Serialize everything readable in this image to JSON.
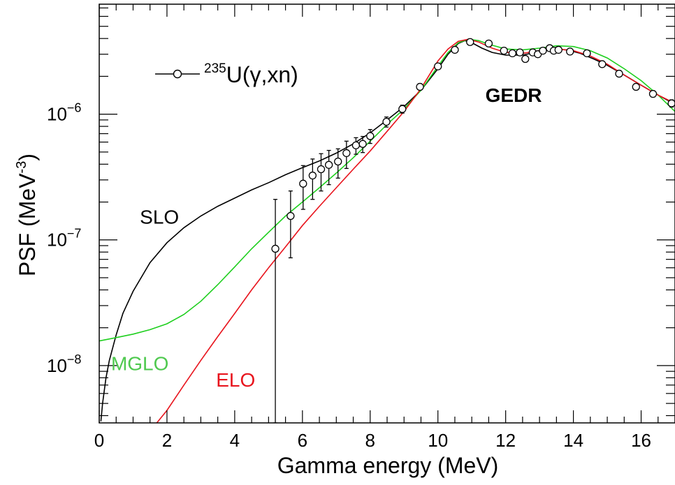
{
  "chart_data": {
    "type": "line",
    "title": "",
    "xlabel": "Gamma energy (MeV)",
    "ylabel_main": "PSF (MeV",
    "ylabel_exp": "-3",
    "ylabel_close": ")",
    "xlim": [
      0,
      17
    ],
    "ylim": [
      3.5e-09,
      7.5e-06
    ],
    "yscale": "log",
    "grid": false,
    "x_ticks": [
      0,
      2,
      4,
      6,
      8,
      10,
      12,
      14,
      16
    ],
    "x_tick_labels": [
      "0",
      "2",
      "4",
      "6",
      "8",
      "10",
      "12",
      "14",
      "16"
    ],
    "y_ticks": [
      1e-08,
      1e-07,
      1e-06
    ],
    "y_tick_labels": [
      {
        "base": "10",
        "exp": "−8"
      },
      {
        "base": "10",
        "exp": "−7"
      },
      {
        "base": "10",
        "exp": "−6"
      }
    ],
    "legend": {
      "placement": "top-left",
      "sup": "235",
      "label": "U(γ,xn)"
    },
    "annotations": [
      {
        "text": "GEDR",
        "x": 11.4,
        "y": 1.25e-06,
        "color": "#000000",
        "bold": true
      },
      {
        "text": "SLO",
        "x": 1.2,
        "y": 1.35e-07,
        "color": "#000000",
        "bold": false
      },
      {
        "text": "MGLO",
        "x": 0.35,
        "y": 9.2e-09,
        "color": "#4fc94f",
        "bold": false
      },
      {
        "text": "ELO",
        "x": 3.45,
        "y": 6.8e-09,
        "color": "#e8141d",
        "bold": false
      }
    ],
    "series": [
      {
        "name": "SLO",
        "color": "#000000",
        "x": [
          0.05,
          0.1,
          0.2,
          0.3,
          0.5,
          0.7,
          1.0,
          1.5,
          2.0,
          2.5,
          3.0,
          3.5,
          4.0,
          4.5,
          5.0,
          5.5,
          6.0,
          6.5,
          7.0,
          7.5,
          8.0,
          8.5,
          9.0,
          9.5,
          10.0,
          10.3,
          10.6,
          10.8,
          11.0,
          11.3,
          11.6,
          12.0,
          12.5,
          13.0,
          13.4,
          13.8,
          14.2,
          14.6,
          15.0,
          15.5,
          16.0,
          16.5,
          17.0
        ],
        "y": [
          3.6e-09,
          5e-09,
          8e-09,
          1.1e-08,
          1.75e-08,
          2.6e-08,
          3.9e-08,
          6.6e-08,
          9.5e-08,
          1.25e-07,
          1.55e-07,
          1.85e-07,
          2.15e-07,
          2.5e-07,
          2.85e-07,
          3.3e-07,
          3.75e-07,
          4.25e-07,
          4.9e-07,
          5.8e-07,
          7.1e-07,
          9e-07,
          1.15e-06,
          1.55e-06,
          2.3e-06,
          3e-06,
          3.65e-06,
          3.85e-06,
          3.7e-06,
          3.35e-06,
          3.1e-06,
          2.95e-06,
          2.95e-06,
          3.15e-06,
          3.3e-06,
          3.25e-06,
          3.05e-06,
          2.75e-06,
          2.45e-06,
          2.05e-06,
          1.7e-06,
          1.42e-06,
          1.2e-06
        ]
      },
      {
        "name": "MGLO",
        "color": "#1ecf1e",
        "x": [
          0.0,
          0.5,
          1.0,
          1.5,
          2.0,
          2.5,
          3.0,
          3.5,
          4.0,
          4.5,
          5.0,
          5.5,
          6.0,
          6.5,
          7.0,
          7.5,
          8.0,
          8.5,
          9.0,
          9.5,
          10.0,
          10.3,
          10.6,
          10.9,
          11.2,
          11.5,
          12.0,
          12.5,
          13.0,
          13.5,
          14.0,
          14.5,
          15.0,
          15.5,
          16.0,
          16.5,
          17.0
        ],
        "y": [
          1.57e-08,
          1.67e-08,
          1.78e-08,
          1.93e-08,
          2.15e-08,
          2.55e-08,
          3.25e-08,
          4.4e-08,
          6.1e-08,
          8.5e-08,
          1.15e-07,
          1.55e-07,
          2e-07,
          2.6e-07,
          3.4e-07,
          4.5e-07,
          6.1e-07,
          8.3e-07,
          1.1e-06,
          1.55e-06,
          2.4e-06,
          3.1e-06,
          3.7e-06,
          3.95e-06,
          3.85e-06,
          3.6e-06,
          3.3e-06,
          3.25e-06,
          3.35e-06,
          3.5e-06,
          3.45e-06,
          3.2e-06,
          2.8e-06,
          2.3e-06,
          1.85e-06,
          1.42e-06,
          1.05e-06
        ]
      },
      {
        "name": "ELO",
        "color": "#e8141d",
        "x": [
          1.7,
          2.0,
          2.5,
          3.0,
          3.5,
          4.0,
          4.5,
          5.0,
          5.5,
          6.0,
          6.5,
          7.0,
          7.5,
          8.0,
          8.5,
          9.0,
          9.5,
          10.0,
          10.3,
          10.6,
          10.9,
          11.2,
          11.6,
          12.0,
          12.5,
          13.0,
          13.5,
          14.0,
          14.5,
          15.0,
          15.5,
          16.0,
          16.5,
          17.0
        ],
        "y": [
          3.5e-09,
          4.4e-09,
          7e-09,
          1.1e-08,
          1.7e-08,
          2.6e-08,
          4e-08,
          6e-08,
          8.8e-08,
          1.3e-07,
          1.85e-07,
          2.6e-07,
          3.65e-07,
          5.1e-07,
          7.3e-07,
          1.05e-06,
          1.6e-06,
          2.65e-06,
          3.3e-06,
          3.8e-06,
          3.95e-06,
          3.75e-06,
          3.35e-06,
          3.1e-06,
          3.05e-06,
          3.2e-06,
          3.3e-06,
          3.2e-06,
          2.9e-06,
          2.5e-06,
          2.05e-06,
          1.7e-06,
          1.42e-06,
          1.22e-06
        ]
      }
    ],
    "points": {
      "name": "235U(γ,xn)",
      "color": "#000000",
      "x": [
        5.2,
        5.65,
        6.02,
        6.3,
        6.55,
        6.78,
        7.05,
        7.3,
        7.58,
        7.78,
        8.0,
        8.48,
        8.95,
        9.47,
        10.0,
        10.5,
        10.95,
        11.5,
        11.95,
        12.2,
        12.42,
        12.58,
        12.8,
        12.95,
        13.1,
        13.3,
        13.42,
        13.56,
        13.9,
        14.4,
        14.85,
        15.35,
        15.85,
        16.35,
        16.9
      ],
      "y": [
        8.5e-08,
        1.55e-07,
        2.8e-07,
        3.25e-07,
        3.65e-07,
        3.95e-07,
        4.2e-07,
        4.9e-07,
        5.65e-07,
        5.8e-07,
        6.7e-07,
        8.7e-07,
        1.1e-06,
        1.65e-06,
        2.4e-06,
        3.25e-06,
        3.75e-06,
        3.65e-06,
        3.2e-06,
        3.05e-06,
        3.1e-06,
        2.75e-06,
        3.1e-06,
        3e-06,
        3.2e-06,
        3.35e-06,
        3.2e-06,
        3.25e-06,
        3.15e-06,
        3.05e-06,
        2.5e-06,
        2.1e-06,
        1.65e-06,
        1.45e-06,
        1.22e-06
      ],
      "ylo": [
        3.5e-09,
        7.2e-08,
        1.75e-07,
        2.1e-07,
        2.45e-07,
        2.75e-07,
        3.1e-07,
        3.7e-07,
        4.8e-07,
        4.95e-07,
        5.85e-07,
        7.9e-07,
        1.02e-06,
        1.57e-06,
        2.3e-06,
        3.1e-06,
        3.6e-06,
        3.5e-06,
        3.08e-06,
        2.95e-06,
        2.98e-06,
        2.62e-06,
        2.98e-06,
        2.88e-06,
        3.08e-06,
        3.2e-06,
        3.08e-06,
        3.12e-06,
        3.02e-06,
        2.9e-06,
        2.4e-06,
        2e-06,
        1.57e-06,
        1.37e-06,
        1.14e-06
      ],
      "yhi": [
        2.1e-07,
        2.45e-07,
        3.9e-07,
        4.4e-07,
        4.85e-07,
        5.15e-07,
        5.3e-07,
        6.1e-07,
        6.5e-07,
        6.65e-07,
        7.55e-07,
        9.5e-07,
        1.18e-06,
        1.73e-06,
        2.5e-06,
        3.4e-06,
        3.9e-06,
        3.8e-06,
        3.32e-06,
        3.15e-06,
        3.22e-06,
        2.88e-06,
        3.22e-06,
        3.12e-06,
        3.32e-06,
        3.5e-06,
        3.32e-06,
        3.38e-06,
        3.28e-06,
        3.2e-06,
        2.6e-06,
        2.2e-06,
        1.73e-06,
        1.53e-06,
        1.3e-06
      ]
    }
  }
}
